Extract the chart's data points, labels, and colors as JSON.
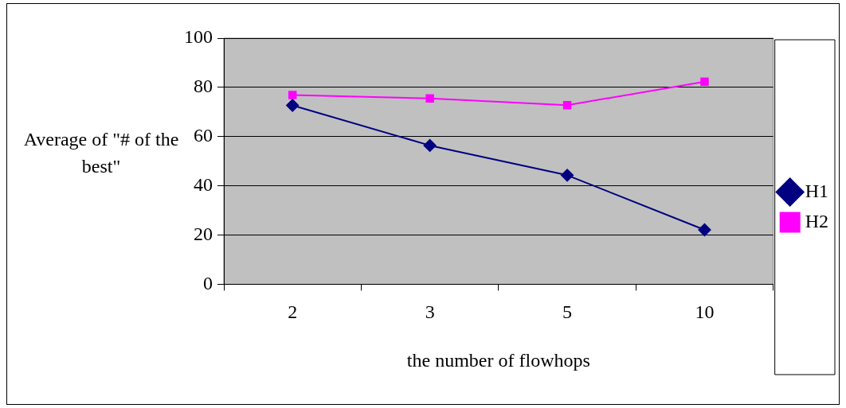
{
  "chart_data": {
    "type": "line",
    "xlabel": "the number of flowhops",
    "ylabel": "Average of \"# of the best\"",
    "categories": [
      "2",
      "3",
      "5",
      "10"
    ],
    "series": [
      {
        "name": "H1",
        "color": "#000080",
        "marker": "diamond",
        "values": [
          72.7,
          56.4,
          44.3,
          22.1
        ]
      },
      {
        "name": "H2",
        "color": "#ff00ff",
        "marker": "square",
        "values": [
          76.9,
          75.5,
          72.8,
          82.3
        ]
      }
    ],
    "ylim": [
      0,
      100
    ],
    "yticks": [
      0,
      20,
      40,
      60,
      80,
      100
    ],
    "grid": "y",
    "legend": "right"
  }
}
